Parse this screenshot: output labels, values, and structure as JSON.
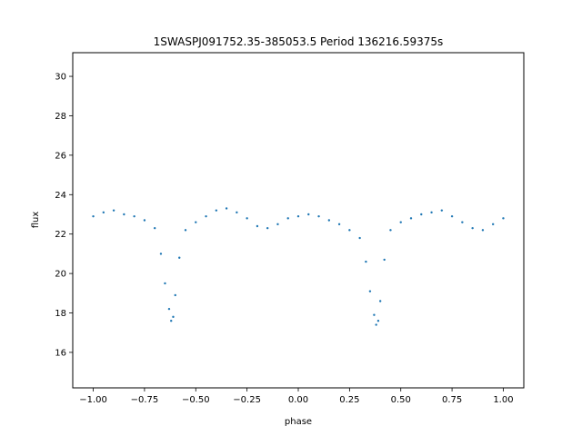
{
  "chart_data": {
    "type": "scatter",
    "title": "1SWASPJ091752.35-385053.5 Period 136216.59375s",
    "xlabel": "phase",
    "ylabel": "flux",
    "xlim": [
      -1.1,
      1.1
    ],
    "ylim": [
      14.2,
      31.2
    ],
    "xticks": [
      -1.0,
      -0.75,
      -0.5,
      -0.25,
      0.0,
      0.25,
      0.5,
      0.75,
      1.0
    ],
    "xtick_labels": [
      "−1.00",
      "−0.75",
      "−0.50",
      "−0.25",
      "0.00",
      "0.25",
      "0.50",
      "0.75",
      "1.00"
    ],
    "yticks": [
      16,
      18,
      20,
      22,
      24,
      26,
      28,
      30
    ],
    "ytick_labels": [
      "16",
      "18",
      "20",
      "22",
      "24",
      "26",
      "28",
      "30"
    ],
    "grid": false,
    "marker_color": "#1f77b4",
    "series": [
      {
        "x": [
          -1.0,
          -0.95,
          -0.9,
          -0.85,
          -0.8,
          -0.75,
          -0.7,
          -0.67,
          -0.65,
          -0.63,
          -0.62,
          -0.61,
          -0.6,
          -0.58,
          -0.55,
          -0.5,
          -0.45,
          -0.4,
          -0.35,
          -0.3,
          -0.25,
          -0.2,
          -0.15,
          -0.1,
          -0.05,
          0.0,
          0.05,
          0.1,
          0.15,
          0.2,
          0.25,
          0.3,
          0.33,
          0.35,
          0.37,
          0.38,
          0.39,
          0.4,
          0.42,
          0.45,
          0.5,
          0.55,
          0.6,
          0.65,
          0.7,
          0.75,
          0.8,
          0.85,
          0.9,
          0.95,
          1.0
        ],
        "values": [
          22.9,
          23.1,
          23.2,
          23.0,
          22.9,
          22.7,
          22.3,
          21.0,
          19.5,
          18.2,
          17.6,
          17.8,
          18.9,
          20.8,
          22.2,
          22.6,
          22.9,
          23.2,
          23.3,
          23.1,
          22.8,
          22.4,
          22.3,
          22.5,
          22.8,
          22.9,
          23.0,
          22.9,
          22.7,
          22.5,
          22.2,
          21.8,
          20.6,
          19.1,
          17.9,
          17.4,
          17.6,
          18.6,
          20.7,
          22.2,
          22.6,
          22.8,
          23.0,
          23.1,
          23.2,
          22.9,
          22.6,
          22.3,
          22.2,
          22.5,
          22.8
        ]
      }
    ]
  }
}
